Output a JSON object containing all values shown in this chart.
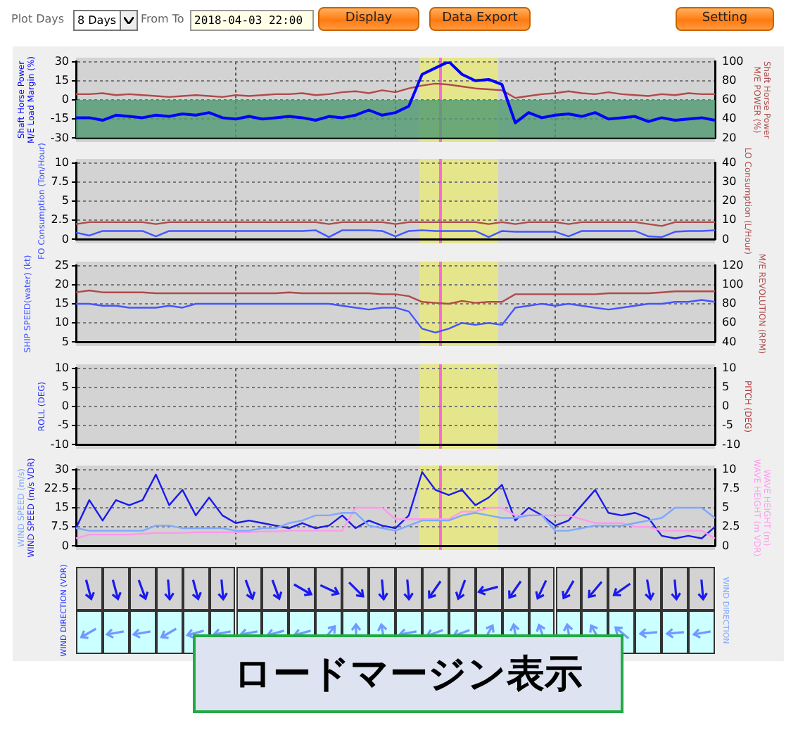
{
  "chart_data": [
    {
      "type": "other",
      "annotations": [
        "Plot Days",
        "8 Days",
        "From To",
        "2018-04-03 22:00",
        "Display",
        "Data Export",
        "Setting"
      ]
    },
    {
      "type": "line",
      "ylabel": "Shaft Horse Power\nM/E Load Margin (%)",
      "y2label": "Shaft Horse Power\nM/E POWER (%)",
      "categories": [
        null,
        null,
        null,
        null,
        null,
        null,
        null,
        null,
        null,
        null,
        null,
        null,
        null,
        null,
        null,
        null,
        null,
        null,
        null,
        null,
        null,
        null,
        null,
        null,
        null,
        null,
        null,
        null,
        null,
        null,
        null,
        null,
        null,
        null,
        null,
        null,
        null,
        null,
        null,
        null,
        null,
        null,
        null,
        null,
        null,
        null,
        null,
        null,
        null
      ],
      "ylim": [
        -30,
        30
      ],
      "yticks": [
        -30,
        -15,
        0,
        15,
        30
      ],
      "y2lim": [
        20,
        100
      ],
      "y2ticks": [
        20,
        40,
        60,
        80,
        100
      ],
      "tick_labels": "y",
      "grid": true,
      "legend": false,
      "series": [
        {
          "color": "#0000ff",
          "values": [
            -14,
            -14,
            -16,
            -12,
            -13,
            -14,
            -12,
            -13,
            -11,
            -12,
            -10,
            -14,
            -15,
            -13,
            -15,
            -14,
            -13,
            -14,
            -16,
            -13,
            -14,
            -12,
            -8,
            -12,
            -10,
            -5,
            20,
            25,
            30,
            20,
            15,
            16,
            12,
            -18,
            -10,
            -14,
            -12,
            -11,
            -13,
            -10,
            -15,
            -14,
            -13,
            -17,
            -14,
            -16,
            -15,
            -14,
            -16
          ]
        },
        {
          "color": "#b04a4a",
          "axis": "y2",
          "values": [
            66,
            66,
            67,
            65,
            66,
            65,
            64,
            63,
            64,
            65,
            64,
            63,
            65,
            64,
            65,
            66,
            66,
            67,
            65,
            66,
            68,
            69,
            67,
            70,
            68,
            72,
            75,
            77,
            76,
            74,
            72,
            71,
            70,
            62,
            64,
            66,
            67,
            69,
            67,
            66,
            68,
            66,
            65,
            64,
            66,
            65,
            67,
            66,
            66
          ]
        }
      ],
      "bands": [
        {
          "axis": "y",
          "from": -30,
          "to": 0,
          "color": "#4f9a70"
        }
      ]
    },
    {
      "type": "line",
      "ylabel": "FO Consumption (Ton/Hour)",
      "y2label": "LO Consumption (L/Hour)",
      "categories": [
        null,
        null,
        null,
        null,
        null,
        null,
        null,
        null,
        null,
        null,
        null,
        null,
        null,
        null,
        null,
        null,
        null,
        null,
        null,
        null,
        null,
        null,
        null,
        null,
        null,
        null,
        null,
        null,
        null,
        null,
        null,
        null,
        null,
        null,
        null,
        null,
        null,
        null,
        null,
        null,
        null,
        null,
        null,
        null,
        null,
        null,
        null,
        null,
        null
      ],
      "ylim": [
        0,
        10
      ],
      "yticks": [
        0,
        2.5,
        5,
        7.5,
        10
      ],
      "y2lim": [
        0,
        40
      ],
      "y2ticks": [
        0,
        10,
        20,
        30,
        40
      ],
      "tick_labels": "y",
      "grid": true,
      "legend": false,
      "series": [
        {
          "color": "#4455ff",
          "values": [
            0.9,
            0.5,
            1.1,
            1.1,
            1.1,
            1.1,
            0.4,
            1.1,
            1.1,
            1.1,
            1.1,
            1.1,
            1.1,
            1.1,
            1.1,
            1.1,
            1.1,
            1.1,
            1.2,
            0.3,
            1.2,
            1.2,
            1.2,
            1.1,
            0.4,
            1.1,
            1.2,
            1.1,
            1.1,
            1.1,
            1.1,
            0.3,
            1.1,
            1.0,
            1.0,
            1.0,
            1.0,
            0.4,
            1.1,
            1.1,
            1.1,
            1.1,
            1.1,
            0.4,
            0.3,
            1.0,
            1.1,
            1.1,
            1.2
          ]
        },
        {
          "color": "#b04a4a",
          "axis": "y2",
          "values": [
            8,
            9,
            9,
            9,
            9,
            9,
            8,
            9,
            9,
            9,
            9,
            9,
            9,
            9,
            9,
            9,
            9,
            9,
            9,
            8,
            9,
            9,
            9,
            9,
            8,
            9,
            9,
            9,
            9,
            9,
            9,
            8,
            9,
            8,
            9,
            9,
            9,
            8,
            9,
            9,
            9,
            9,
            9,
            8,
            7,
            9,
            9,
            9,
            9
          ]
        }
      ]
    },
    {
      "type": "line",
      "ylabel": "SHIP SPEED(water) (kt)",
      "y2label": "M/E REVOLUTION (RPM)",
      "categories": [
        null,
        null,
        null,
        null,
        null,
        null,
        null,
        null,
        null,
        null,
        null,
        null,
        null,
        null,
        null,
        null,
        null,
        null,
        null,
        null,
        null,
        null,
        null,
        null,
        null,
        null,
        null,
        null,
        null,
        null,
        null,
        null,
        null,
        null,
        null,
        null,
        null,
        null,
        null,
        null,
        null,
        null,
        null,
        null,
        null,
        null,
        null,
        null,
        null
      ],
      "ylim": [
        5,
        25
      ],
      "yticks": [
        5,
        10,
        15,
        20,
        25
      ],
      "y2lim": [
        40,
        120
      ],
      "y2ticks": [
        40,
        60,
        80,
        100,
        120
      ],
      "tick_labels": "y",
      "grid": true,
      "legend": false,
      "series": [
        {
          "color": "#4455ff",
          "values": [
            15,
            15,
            14.5,
            14.5,
            14,
            14,
            14,
            14.5,
            14,
            15,
            15,
            15,
            15,
            15,
            15,
            15,
            15,
            15,
            15,
            15,
            14.5,
            14,
            13.5,
            14,
            14,
            13,
            8.5,
            7.5,
            8.5,
            10,
            9.5,
            10,
            9.5,
            14,
            14.5,
            15,
            14.5,
            15,
            14.5,
            14,
            13.5,
            14,
            14.5,
            15,
            15,
            15.5,
            15.5,
            16,
            15.5
          ]
        },
        {
          "color": "#b04a4a",
          "axis": "y2",
          "values": [
            92,
            94,
            92,
            92,
            92,
            92,
            91,
            91,
            91,
            91,
            91,
            91,
            91,
            91,
            91,
            91,
            92,
            91,
            91,
            91,
            91,
            91,
            91,
            90,
            90,
            88,
            82,
            81,
            80,
            83,
            81,
            82,
            82,
            90,
            90,
            90,
            90,
            90,
            90,
            90,
            91,
            91,
            91,
            91,
            92,
            93,
            93,
            93,
            93
          ]
        }
      ]
    },
    {
      "type": "line",
      "ylabel": "ROLL (DEG)",
      "y2label": "PITCH (DEG)",
      "categories": [
        null,
        null,
        null,
        null,
        null,
        null,
        null,
        null,
        null,
        null,
        null,
        null,
        null,
        null,
        null,
        null,
        null,
        null,
        null,
        null,
        null,
        null,
        null,
        null,
        null,
        null,
        null,
        null,
        null,
        null,
        null,
        null,
        null,
        null,
        null,
        null,
        null,
        null,
        null,
        null,
        null,
        null,
        null,
        null,
        null,
        null,
        null,
        null,
        null
      ],
      "ylim": [
        -10,
        10
      ],
      "yticks": [
        -10,
        -5,
        0,
        5,
        10
      ],
      "y2lim": [
        -10,
        10
      ],
      "y2ticks": [
        -10,
        -5,
        0,
        5,
        10
      ],
      "tick_labels": "y",
      "grid": true,
      "legend": false
    },
    {
      "type": "line",
      "ylabel": "WIND SPEED (m/s)\nWIND SPEED (m/s VDR)",
      "y2label": "WAVE HEIGHT (m)\nWAVE HEIGHT (m VDR)",
      "categories": [
        null,
        null,
        null,
        null,
        null,
        null,
        null,
        null,
        null,
        null,
        null,
        null,
        null,
        null,
        null,
        null,
        null,
        null,
        null,
        null,
        null,
        null,
        null,
        null,
        null,
        null,
        null,
        null,
        null,
        null,
        null,
        null,
        null,
        null,
        null,
        null,
        null,
        null,
        null,
        null,
        null,
        null,
        null,
        null,
        null,
        null,
        null,
        null,
        null
      ],
      "ylim": [
        0,
        30
      ],
      "yticks": [
        0,
        7.5,
        15,
        22.5,
        30
      ],
      "y2lim": [
        0,
        10
      ],
      "y2ticks": [
        0,
        2.5,
        5,
        7.5,
        10
      ],
      "tick_labels": "y",
      "grid": true,
      "legend": false,
      "series": [
        {
          "color": "#7fa8ff",
          "values": [
            7,
            6,
            6,
            6,
            6,
            6,
            8,
            8,
            7,
            7,
            7,
            7,
            6,
            6,
            7,
            7,
            9,
            10,
            12,
            12,
            13,
            13,
            8,
            7,
            6,
            8,
            10,
            10,
            10,
            12,
            13,
            12,
            11,
            11,
            12,
            12,
            6,
            6,
            7,
            8,
            8,
            8,
            9,
            10,
            11,
            15,
            15,
            15,
            11
          ]
        },
        {
          "color": "#ff99ee",
          "axis": "y2",
          "values": [
            1,
            1.5,
            1.5,
            1.5,
            1.5,
            1.6,
            1.7,
            1.7,
            1.7,
            1.8,
            1.8,
            1.8,
            1.8,
            1.8,
            1.9,
            1.9,
            2,
            2,
            2,
            2,
            2,
            5,
            5,
            5,
            3.5,
            3.5,
            3.5,
            3.5,
            3.5,
            4.5,
            4.5,
            5,
            5,
            4,
            4,
            4,
            4,
            4,
            3.5,
            3,
            3,
            3,
            2.5,
            2.5,
            2,
            2,
            2,
            2,
            1
          ]
        },
        {
          "color": "#1a1aee",
          "values": [
            7,
            18,
            10,
            18,
            16,
            18,
            28,
            16,
            22,
            12,
            19,
            12,
            9,
            10,
            9,
            8,
            7,
            9,
            7,
            8,
            12,
            7,
            10,
            8,
            7,
            12,
            29,
            22,
            20,
            22,
            16,
            19,
            24,
            10,
            15,
            12,
            8,
            10,
            16,
            22,
            13,
            12,
            13,
            11,
            4,
            3,
            4,
            3,
            7.5
          ]
        }
      ]
    },
    {
      "type": "other",
      "ylabel": "WIND DIRECTION (VDR)",
      "y2label": "WIND DIRECTION",
      "annotations": [
        "ロードマージン表示"
      ]
    }
  ]
}
